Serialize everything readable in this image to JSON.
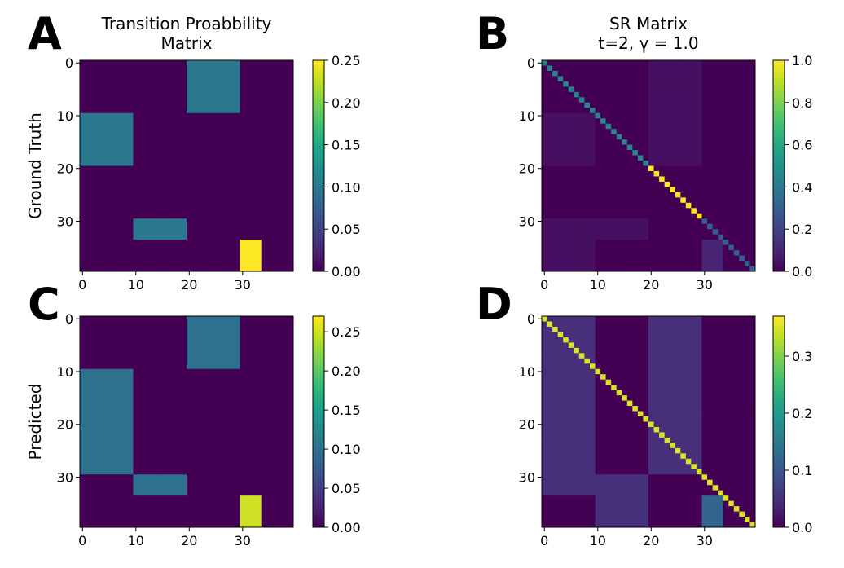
{
  "chart_data": [
    {
      "type": "heatmap",
      "panel": "A",
      "title": [
        "Transition Proabbility",
        "Matrix"
      ],
      "ylabel": "Ground Truth",
      "size": 40,
      "colormap": "viridis",
      "background": 0.0,
      "regions": [
        {
          "rows": [
            0,
            9
          ],
          "cols": [
            20,
            29
          ],
          "value": 0.1
        },
        {
          "rows": [
            10,
            19
          ],
          "cols": [
            0,
            9
          ],
          "value": 0.1
        },
        {
          "rows": [
            30,
            33
          ],
          "cols": [
            10,
            19
          ],
          "value": 0.1
        },
        {
          "rows": [
            34,
            39
          ],
          "cols": [
            30,
            33
          ],
          "value": 0.25
        }
      ],
      "diagonal": null,
      "xticks": [
        0,
        10,
        20,
        30
      ],
      "yticks": [
        0,
        10,
        20,
        30
      ],
      "colorbar": {
        "vmin": 0.0,
        "vmax": 0.25,
        "ticks": [
          0.0,
          0.05,
          0.1,
          0.15,
          0.2,
          0.25
        ],
        "labels": [
          "0.00",
          "0.05",
          "0.10",
          "0.15",
          "0.20",
          "0.25"
        ]
      }
    },
    {
      "type": "heatmap",
      "panel": "B",
      "title": [
        "SR Matrix",
        "t=2, γ = 1.0"
      ],
      "ylabel": "",
      "size": 40,
      "colormap": "viridis",
      "background": 0.0,
      "regions": [
        {
          "rows": [
            0,
            9
          ],
          "cols": [
            20,
            29
          ],
          "value": 0.04
        },
        {
          "rows": [
            10,
            19
          ],
          "cols": [
            0,
            9
          ],
          "value": 0.04
        },
        {
          "rows": [
            10,
            19
          ],
          "cols": [
            20,
            29
          ],
          "value": 0.04
        },
        {
          "rows": [
            30,
            33
          ],
          "cols": [
            0,
            19
          ],
          "value": 0.04
        },
        {
          "rows": [
            34,
            39
          ],
          "cols": [
            0,
            9
          ],
          "value": 0.04
        },
        {
          "rows": [
            34,
            39
          ],
          "cols": [
            30,
            33
          ],
          "value": 0.1
        }
      ],
      "diagonal": [
        {
          "from": 0,
          "to": 19,
          "value": 0.45
        },
        {
          "from": 20,
          "to": 29,
          "value": 1.0
        },
        {
          "from": 30,
          "to": 39,
          "value": 0.3
        }
      ],
      "xticks": [
        0,
        10,
        20,
        30
      ],
      "yticks": [
        0,
        10,
        20,
        30
      ],
      "colorbar": {
        "vmin": 0.0,
        "vmax": 1.0,
        "ticks": [
          0.0,
          0.2,
          0.4,
          0.6,
          0.8,
          1.0
        ],
        "labels": [
          "0.0",
          "0.2",
          "0.4",
          "0.6",
          "0.8",
          "1.0"
        ]
      }
    },
    {
      "type": "heatmap",
      "panel": "C",
      "title": [],
      "ylabel": "Predicted",
      "size": 40,
      "colormap": "viridis",
      "background": 0.0,
      "regions": [
        {
          "rows": [
            0,
            9
          ],
          "cols": [
            20,
            29
          ],
          "value": 0.1
        },
        {
          "rows": [
            10,
            29
          ],
          "cols": [
            0,
            9
          ],
          "value": 0.1
        },
        {
          "rows": [
            30,
            33
          ],
          "cols": [
            10,
            19
          ],
          "value": 0.1
        },
        {
          "rows": [
            34,
            39
          ],
          "cols": [
            30,
            33
          ],
          "value": 0.25
        }
      ],
      "diagonal": null,
      "xticks": [
        0,
        10,
        20,
        30
      ],
      "yticks": [
        0,
        10,
        20,
        30
      ],
      "colorbar": {
        "vmin": 0.0,
        "vmax": 0.27,
        "ticks": [
          0.0,
          0.05,
          0.1,
          0.15,
          0.2,
          0.25
        ],
        "labels": [
          "0.00",
          "0.05",
          "0.10",
          "0.15",
          "0.20",
          "0.25"
        ]
      }
    },
    {
      "type": "heatmap",
      "panel": "D",
      "title": [],
      "ylabel": "",
      "size": 40,
      "colormap": "viridis",
      "background": 0.0,
      "regions": [
        {
          "rows": [
            0,
            33
          ],
          "cols": [
            0,
            9
          ],
          "value": 0.05
        },
        {
          "rows": [
            0,
            29
          ],
          "cols": [
            20,
            29
          ],
          "value": 0.05
        },
        {
          "rows": [
            30,
            39
          ],
          "cols": [
            10,
            19
          ],
          "value": 0.05
        },
        {
          "rows": [
            34,
            39
          ],
          "cols": [
            30,
            33
          ],
          "value": 0.12
        }
      ],
      "diagonal": [
        {
          "from": 0,
          "to": 39,
          "value": 0.35
        }
      ],
      "xticks": [
        0,
        10,
        20,
        30
      ],
      "yticks": [
        0,
        10,
        20,
        30
      ],
      "colorbar": {
        "vmin": 0.0,
        "vmax": 0.37,
        "ticks": [
          0.0,
          0.1,
          0.2,
          0.3
        ],
        "labels": [
          "0.0",
          "0.1",
          "0.2",
          "0.3"
        ]
      }
    }
  ]
}
